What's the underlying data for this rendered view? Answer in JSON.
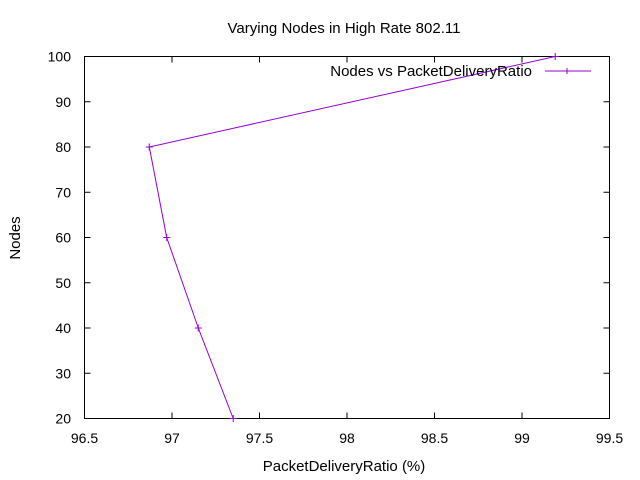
{
  "chart_data": {
    "type": "line",
    "title": "Varying Nodes in High Rate 802.11",
    "xlabel": "PacketDeliveryRatio (%)",
    "ylabel": "Nodes",
    "xlim": [
      96.5,
      99.5
    ],
    "ylim": [
      20,
      100
    ],
    "xticks": [
      "96.5",
      "97",
      "97.5",
      "98",
      "98.5",
      "99",
      "99.5"
    ],
    "yticks": [
      "20",
      "30",
      "40",
      "50",
      "60",
      "70",
      "80",
      "90",
      "100"
    ],
    "grid": false,
    "legend_position": "top-right",
    "series": [
      {
        "name": "Nodes vs PacketDeliveryRatio",
        "color": "#9400d3",
        "marker": "plus",
        "points": [
          {
            "x": 97.35,
            "y": 20
          },
          {
            "x": 97.15,
            "y": 40
          },
          {
            "x": 96.97,
            "y": 60
          },
          {
            "x": 96.87,
            "y": 80
          },
          {
            "x": 99.19,
            "y": 100
          }
        ]
      }
    ]
  }
}
